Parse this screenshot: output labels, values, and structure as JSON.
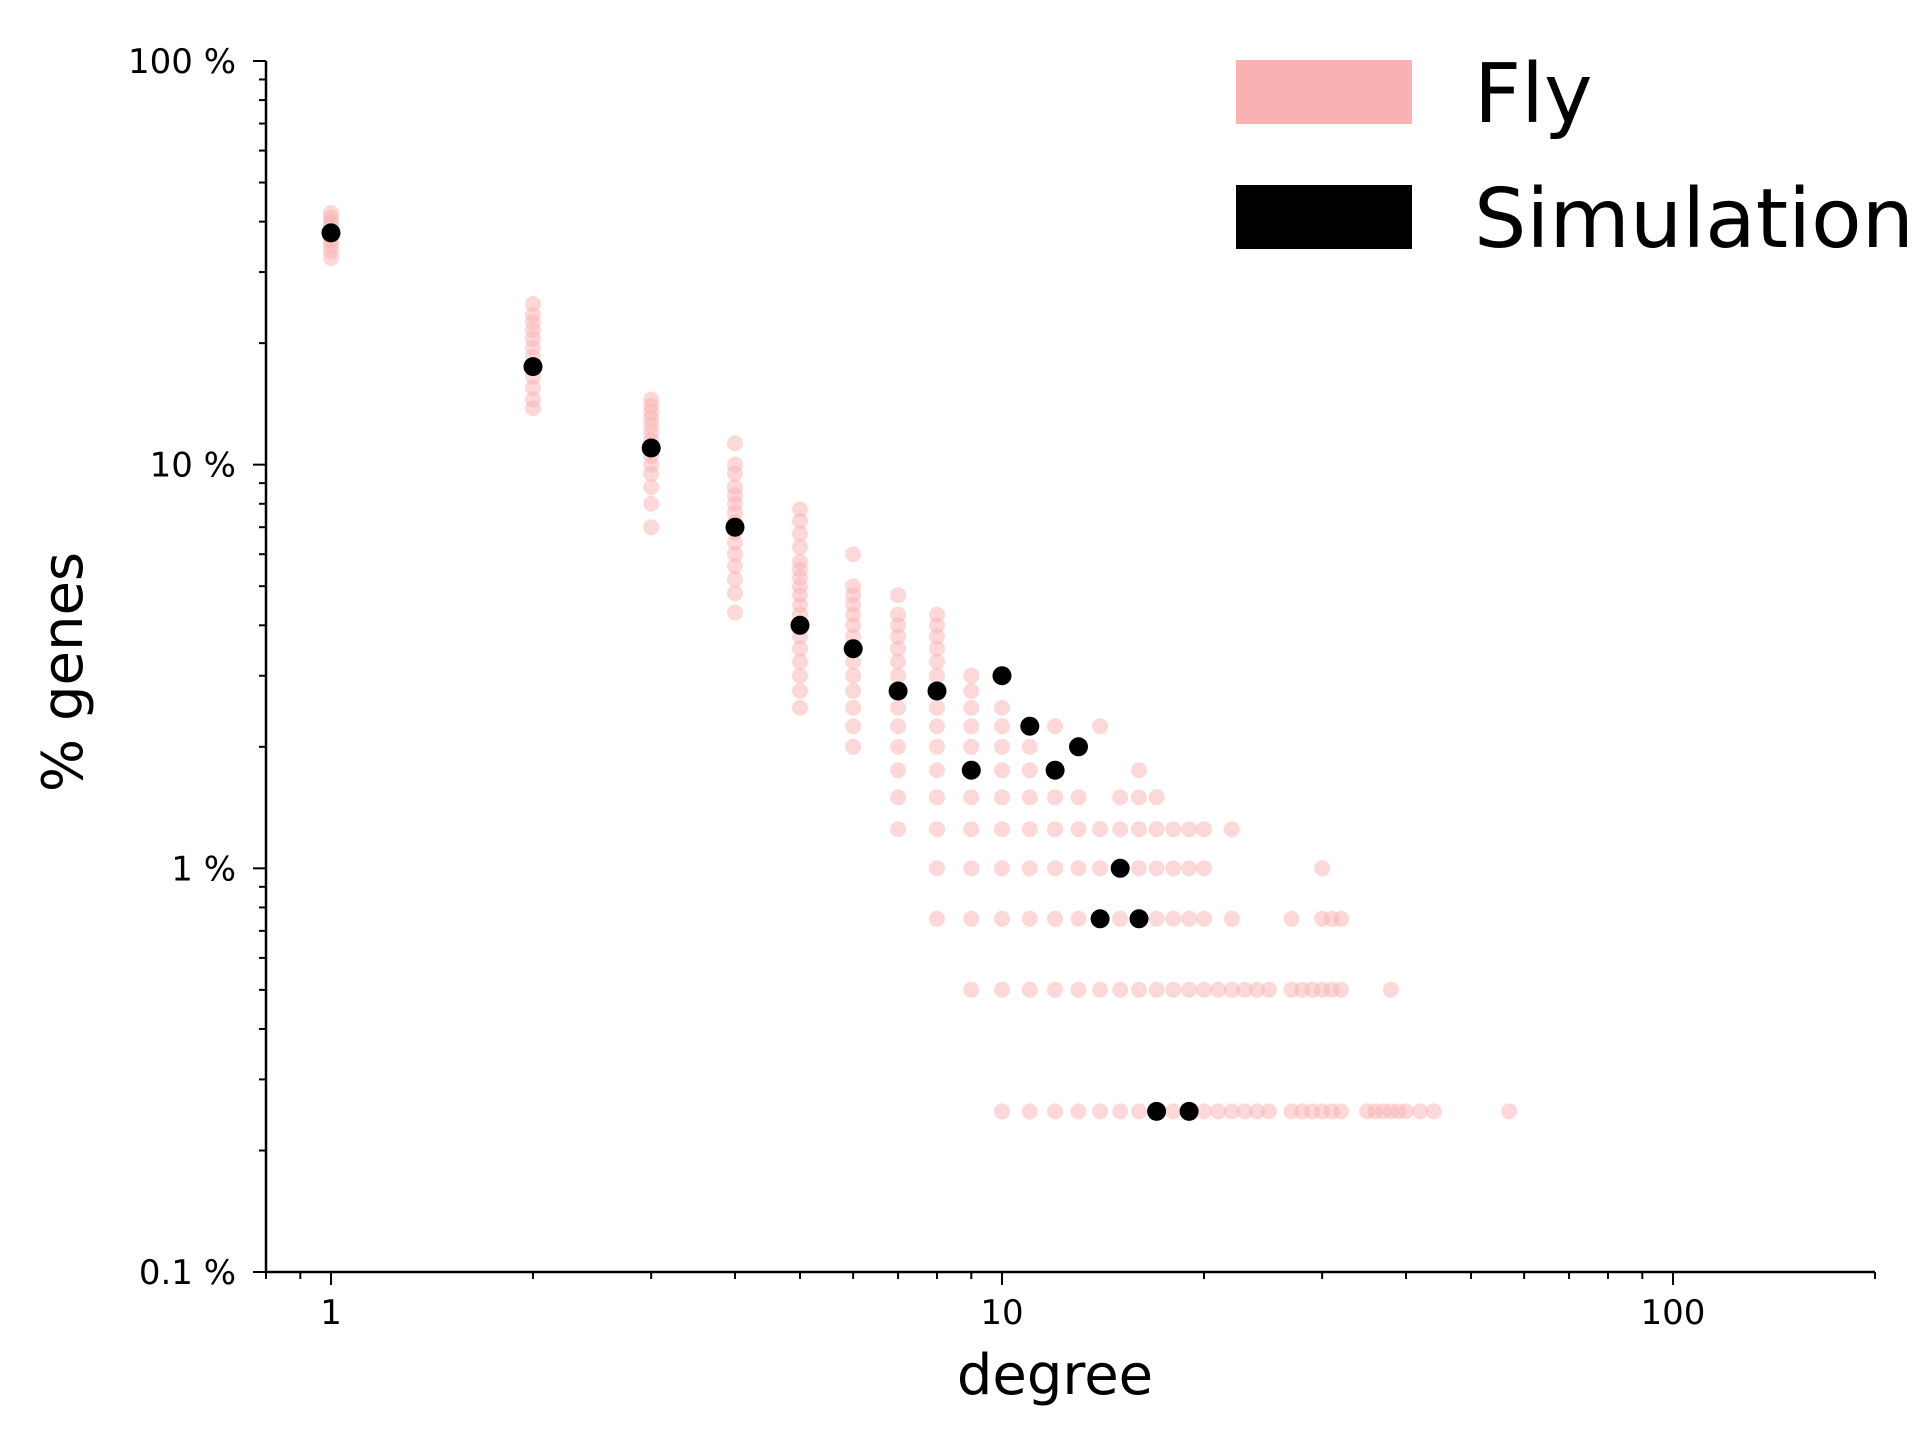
{
  "chart_data": {
    "type": "scatter",
    "title": "",
    "xlabel": "degree",
    "ylabel": "% genes",
    "x_scale": "log",
    "y_scale": "log",
    "xlim": [
      0.8,
      200
    ],
    "ylim": [
      0.1,
      100
    ],
    "x_ticks": [
      {
        "value": 1,
        "label": "1"
      },
      {
        "value": 10,
        "label": "10"
      },
      {
        "value": 100,
        "label": "100"
      }
    ],
    "y_ticks": [
      {
        "value": 0.1,
        "label": "0.1 %"
      },
      {
        "value": 1,
        "label": "1 %"
      },
      {
        "value": 10,
        "label": "10 %"
      },
      {
        "value": 100,
        "label": "100 %"
      }
    ],
    "grid": false,
    "legend": {
      "position": "top-right",
      "entries": [
        {
          "name": "Fly",
          "color": "#f9b1b1"
        },
        {
          "name": "Simulation",
          "color": "#000000"
        }
      ]
    },
    "series": [
      {
        "name": "Fly",
        "color": "#f9b1b1",
        "points": [
          [
            1,
            32.5
          ],
          [
            1,
            33.8
          ],
          [
            1,
            35
          ],
          [
            1,
            36
          ],
          [
            1,
            37
          ],
          [
            1,
            38
          ],
          [
            1,
            39
          ],
          [
            1,
            40
          ],
          [
            1,
            41
          ],
          [
            1,
            42
          ],
          [
            2,
            13.8
          ],
          [
            2,
            14.5
          ],
          [
            2,
            15.5
          ],
          [
            2,
            16.5
          ],
          [
            2,
            17.5
          ],
          [
            2,
            18.5
          ],
          [
            2,
            19.5
          ],
          [
            2,
            20.5
          ],
          [
            2,
            21.5
          ],
          [
            2,
            22.5
          ],
          [
            2,
            23.5
          ],
          [
            2,
            25
          ],
          [
            3,
            7
          ],
          [
            3,
            8
          ],
          [
            3,
            8.8
          ],
          [
            3,
            9.5
          ],
          [
            3,
            10
          ],
          [
            3,
            10.5
          ],
          [
            3,
            11
          ],
          [
            3,
            11.5
          ],
          [
            3,
            12
          ],
          [
            3,
            12.5
          ],
          [
            3,
            13
          ],
          [
            3,
            13.5
          ],
          [
            3,
            14
          ],
          [
            3,
            14.5
          ],
          [
            4,
            4.3
          ],
          [
            4,
            4.8
          ],
          [
            4,
            5.2
          ],
          [
            4,
            5.6
          ],
          [
            4,
            6
          ],
          [
            4,
            6.4
          ],
          [
            4,
            6.8
          ],
          [
            4,
            7.2
          ],
          [
            4,
            7.6
          ],
          [
            4,
            8
          ],
          [
            4,
            8.4
          ],
          [
            4,
            8.8
          ],
          [
            4,
            9.5
          ],
          [
            4,
            10
          ],
          [
            4,
            11.3
          ],
          [
            5,
            2.5
          ],
          [
            5,
            2.75
          ],
          [
            5,
            3
          ],
          [
            5,
            3.25
          ],
          [
            5,
            3.5
          ],
          [
            5,
            3.75
          ],
          [
            5,
            4
          ],
          [
            5,
            4.25
          ],
          [
            5,
            4.5
          ],
          [
            5,
            4.75
          ],
          [
            5,
            5
          ],
          [
            5,
            5.25
          ],
          [
            5,
            5.5
          ],
          [
            5,
            5.75
          ],
          [
            5,
            6.25
          ],
          [
            5,
            6.75
          ],
          [
            5,
            7.25
          ],
          [
            5,
            7.75
          ],
          [
            6,
            2
          ],
          [
            6,
            2.25
          ],
          [
            6,
            2.5
          ],
          [
            6,
            2.75
          ],
          [
            6,
            3
          ],
          [
            6,
            3.25
          ],
          [
            6,
            3.5
          ],
          [
            6,
            3.75
          ],
          [
            6,
            4
          ],
          [
            6,
            4.25
          ],
          [
            6,
            4.5
          ],
          [
            6,
            4.75
          ],
          [
            6,
            5
          ],
          [
            6,
            6
          ],
          [
            7,
            1.25
          ],
          [
            7,
            1.5
          ],
          [
            7,
            1.75
          ],
          [
            7,
            2
          ],
          [
            7,
            2.25
          ],
          [
            7,
            2.5
          ],
          [
            7,
            2.75
          ],
          [
            7,
            3
          ],
          [
            7,
            3.25
          ],
          [
            7,
            3.5
          ],
          [
            7,
            3.75
          ],
          [
            7,
            4
          ],
          [
            7,
            4.25
          ],
          [
            7,
            4.75
          ],
          [
            8,
            0.75
          ],
          [
            8,
            1
          ],
          [
            8,
            1.25
          ],
          [
            8,
            1.5
          ],
          [
            8,
            1.75
          ],
          [
            8,
            2
          ],
          [
            8,
            2.25
          ],
          [
            8,
            2.5
          ],
          [
            8,
            2.75
          ],
          [
            8,
            3
          ],
          [
            8,
            3.25
          ],
          [
            8,
            3.5
          ],
          [
            8,
            3.75
          ],
          [
            8,
            4
          ],
          [
            8,
            4.25
          ],
          [
            9,
            0.5
          ],
          [
            9,
            0.75
          ],
          [
            9,
            1
          ],
          [
            9,
            1.25
          ],
          [
            9,
            1.5
          ],
          [
            9,
            1.75
          ],
          [
            9,
            2
          ],
          [
            9,
            2.25
          ],
          [
            9,
            2.5
          ],
          [
            9,
            2.75
          ],
          [
            9,
            3
          ],
          [
            10,
            0.25
          ],
          [
            10,
            0.5
          ],
          [
            10,
            0.75
          ],
          [
            10,
            1
          ],
          [
            10,
            1.25
          ],
          [
            10,
            1.5
          ],
          [
            10,
            1.75
          ],
          [
            10,
            2
          ],
          [
            10,
            2.25
          ],
          [
            10,
            2.5
          ],
          [
            11,
            0.25
          ],
          [
            11,
            0.5
          ],
          [
            11,
            0.75
          ],
          [
            11,
            1
          ],
          [
            11,
            1.25
          ],
          [
            11,
            1.5
          ],
          [
            11,
            1.75
          ],
          [
            11,
            2
          ],
          [
            12,
            0.25
          ],
          [
            12,
            0.5
          ],
          [
            12,
            0.75
          ],
          [
            12,
            1
          ],
          [
            12,
            1.25
          ],
          [
            12,
            1.5
          ],
          [
            12,
            2.25
          ],
          [
            13,
            0.25
          ],
          [
            13,
            0.5
          ],
          [
            13,
            0.75
          ],
          [
            13,
            1
          ],
          [
            13,
            1.25
          ],
          [
            13,
            1.5
          ],
          [
            14,
            0.25
          ],
          [
            14,
            0.5
          ],
          [
            14,
            0.75
          ],
          [
            14,
            1
          ],
          [
            14,
            1.25
          ],
          [
            14,
            2.25
          ],
          [
            15,
            0.25
          ],
          [
            15,
            0.5
          ],
          [
            15,
            0.75
          ],
          [
            15,
            1
          ],
          [
            15,
            1.25
          ],
          [
            15,
            1.5
          ],
          [
            16,
            0.25
          ],
          [
            16,
            0.5
          ],
          [
            16,
            0.75
          ],
          [
            16,
            1
          ],
          [
            16,
            1.25
          ],
          [
            16,
            1.5
          ],
          [
            16,
            1.75
          ],
          [
            17,
            0.25
          ],
          [
            17,
            0.5
          ],
          [
            17,
            0.75
          ],
          [
            17,
            1
          ],
          [
            17,
            1.25
          ],
          [
            17,
            1.5
          ],
          [
            18,
            0.25
          ],
          [
            18,
            0.5
          ],
          [
            18,
            0.75
          ],
          [
            18,
            1
          ],
          [
            18,
            1.25
          ],
          [
            19,
            0.25
          ],
          [
            19,
            0.5
          ],
          [
            19,
            0.75
          ],
          [
            19,
            1
          ],
          [
            19,
            1.25
          ],
          [
            20,
            0.25
          ],
          [
            20,
            0.5
          ],
          [
            20,
            0.75
          ],
          [
            20,
            1
          ],
          [
            20,
            1.25
          ],
          [
            21,
            0.25
          ],
          [
            21,
            0.5
          ],
          [
            22,
            0.25
          ],
          [
            22,
            0.5
          ],
          [
            22,
            0.75
          ],
          [
            22,
            1.25
          ],
          [
            23,
            0.25
          ],
          [
            23,
            0.5
          ],
          [
            24,
            0.25
          ],
          [
            24,
            0.5
          ],
          [
            25,
            0.25
          ],
          [
            25,
            0.5
          ],
          [
            27,
            0.25
          ],
          [
            27,
            0.5
          ],
          [
            27,
            0.75
          ],
          [
            28,
            0.25
          ],
          [
            28,
            0.5
          ],
          [
            29,
            0.25
          ],
          [
            29,
            0.5
          ],
          [
            30,
            0.25
          ],
          [
            30,
            0.5
          ],
          [
            30,
            0.75
          ],
          [
            30,
            1
          ],
          [
            31,
            0.25
          ],
          [
            31,
            0.5
          ],
          [
            31,
            0.75
          ],
          [
            32,
            0.25
          ],
          [
            32,
            0.5
          ],
          [
            32,
            0.75
          ],
          [
            35,
            0.25
          ],
          [
            36,
            0.25
          ],
          [
            37,
            0.25
          ],
          [
            38,
            0.25
          ],
          [
            38,
            0.5
          ],
          [
            39,
            0.25
          ],
          [
            40,
            0.25
          ],
          [
            42,
            0.25
          ],
          [
            44,
            0.25
          ],
          [
            57,
            0.25
          ]
        ]
      },
      {
        "name": "Simulation",
        "color": "#000000",
        "points": [
          [
            1,
            37.5
          ],
          [
            2,
            17.5
          ],
          [
            3,
            11
          ],
          [
            4,
            7
          ],
          [
            5,
            4
          ],
          [
            6,
            3.5
          ],
          [
            7,
            2.75
          ],
          [
            8,
            2.75
          ],
          [
            9,
            1.75
          ],
          [
            10,
            3
          ],
          [
            11,
            2.25
          ],
          [
            12,
            1.75
          ],
          [
            13,
            2
          ],
          [
            14,
            0.75
          ],
          [
            15,
            1
          ],
          [
            16,
            0.75
          ],
          [
            17,
            0.25
          ],
          [
            19,
            0.25
          ]
        ]
      }
    ]
  }
}
